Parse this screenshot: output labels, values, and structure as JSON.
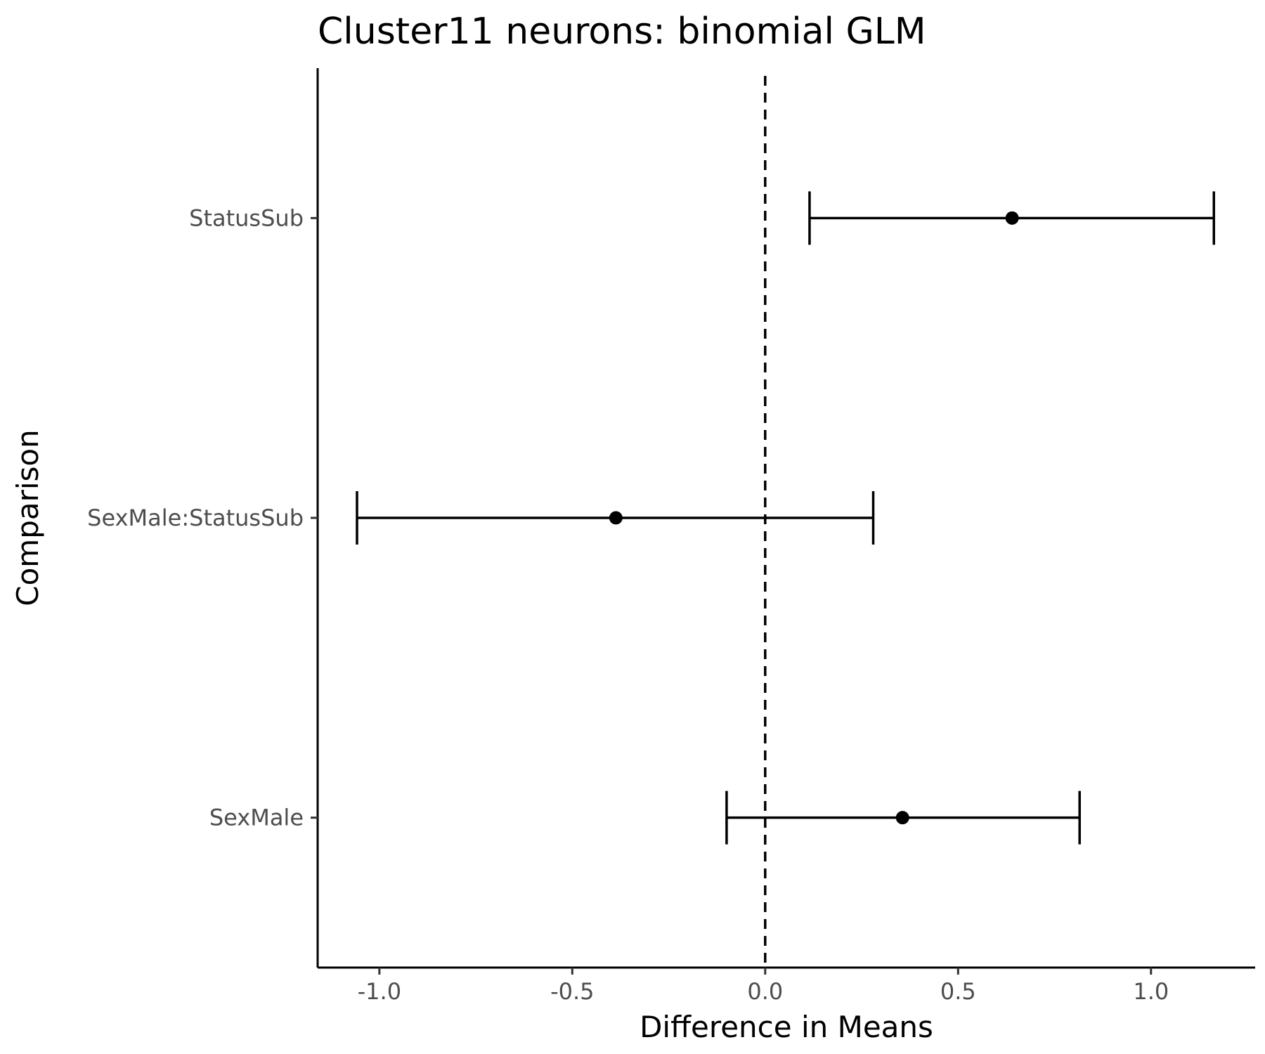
{
  "chart_data": {
    "type": "errorbar",
    "title": "Cluster11 neurons: binomial GLM",
    "xlabel": "Difference in Means",
    "ylabel": "Comparison",
    "xlim": [
      -1.16,
      1.27
    ],
    "xticks": [
      -1.0,
      -0.5,
      0.0,
      0.5,
      1.0
    ],
    "xtick_labels": [
      "-1.0",
      "-0.5",
      "0.0",
      "0.5",
      "1.0"
    ],
    "reference_line": {
      "x": 0.0,
      "style": "dashed"
    },
    "grid": false,
    "categories": [
      "StatusSub",
      "SexMale:StatusSub",
      "SexMale"
    ],
    "points": [
      {
        "label": "StatusSub",
        "estimate": 0.64,
        "lower": 0.115,
        "upper": 1.163
      },
      {
        "label": "SexMale:StatusSub",
        "estimate": -0.387,
        "lower": -1.058,
        "upper": 0.28
      },
      {
        "label": "SexMale",
        "estimate": 0.356,
        "lower": -0.1,
        "upper": 0.815
      }
    ],
    "color": "#000000"
  }
}
